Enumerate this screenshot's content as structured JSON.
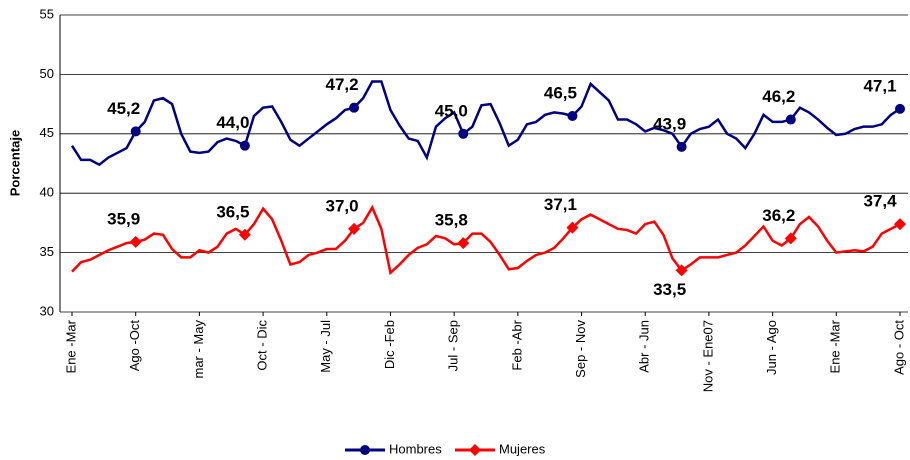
{
  "chart_data": {
    "type": "line",
    "ylabel": "Porcentaje",
    "categories": [
      "Ene -Mar",
      null,
      null,
      null,
      null,
      null,
      null,
      "Ago -Oct",
      null,
      null,
      null,
      null,
      null,
      null,
      "mar - May",
      null,
      null,
      null,
      null,
      null,
      null,
      "Oct - Dic",
      null,
      null,
      null,
      null,
      null,
      null,
      "May - Jul",
      null,
      null,
      null,
      null,
      null,
      null,
      "Dic -Feb",
      null,
      null,
      null,
      null,
      null,
      null,
      "Jul - Sep",
      null,
      null,
      null,
      null,
      null,
      null,
      "Feb -Abr",
      null,
      null,
      null,
      null,
      null,
      null,
      "Sep - Nov",
      null,
      null,
      null,
      null,
      null,
      null,
      "Abr - Jun",
      null,
      null,
      null,
      null,
      null,
      null,
      "Nov - Ene07",
      null,
      null,
      null,
      null,
      null,
      null,
      "Jun - Ago",
      null,
      null,
      null,
      null,
      null,
      null,
      "Ene -Mar",
      null,
      null,
      null,
      null,
      null,
      null,
      "Ago - Oct"
    ],
    "series": [
      {
        "name": "Hombres",
        "color": "#000080",
        "label_color": "#333399",
        "values": [
          44.0,
          42.8,
          42.8,
          42.4,
          43.0,
          43.4,
          43.8,
          45.2,
          46.0,
          47.8,
          48.0,
          47.5,
          45.0,
          43.5,
          43.4,
          43.5,
          44.3,
          44.6,
          44.4,
          44.0,
          46.5,
          47.2,
          47.3,
          46.0,
          44.5,
          44.0,
          44.6,
          45.2,
          45.8,
          46.3,
          47.0,
          47.2,
          48.0,
          49.4,
          49.4,
          47.0,
          45.7,
          44.6,
          44.4,
          43.0,
          45.6,
          46.3,
          46.8,
          45.0,
          45.6,
          47.4,
          47.5,
          45.9,
          44.0,
          44.5,
          45.8,
          46.0,
          46.6,
          46.8,
          46.7,
          46.5,
          47.3,
          49.2,
          48.5,
          47.8,
          46.2,
          46.2,
          45.8,
          45.2,
          45.5,
          45.3,
          45.0,
          43.9,
          45.0,
          45.4,
          45.6,
          46.2,
          45.0,
          44.6,
          43.8,
          45.0,
          46.6,
          46.0,
          46.0,
          46.2,
          47.2,
          46.8,
          46.2,
          45.5,
          44.9,
          45.0,
          45.4,
          45.6,
          45.6,
          45.8,
          46.6,
          47.1
        ],
        "value_labels": [
          null,
          null,
          null,
          null,
          null,
          null,
          null,
          "45,2",
          null,
          null,
          null,
          null,
          null,
          null,
          null,
          null,
          null,
          null,
          null,
          "44,0",
          null,
          null,
          null,
          null,
          null,
          null,
          null,
          null,
          null,
          null,
          null,
          "47,2",
          null,
          null,
          null,
          null,
          null,
          null,
          null,
          null,
          null,
          null,
          null,
          "45,0",
          null,
          null,
          null,
          null,
          null,
          null,
          null,
          null,
          null,
          null,
          null,
          "46,5",
          null,
          null,
          null,
          null,
          null,
          null,
          null,
          null,
          null,
          null,
          null,
          "43,9",
          null,
          null,
          null,
          null,
          null,
          null,
          null,
          null,
          null,
          null,
          null,
          "46,2",
          null,
          null,
          null,
          null,
          null,
          null,
          null,
          null,
          null,
          null,
          null,
          "47,1"
        ]
      },
      {
        "name": "Mujeres",
        "color": "#ff0000",
        "label_color": "#ff0000",
        "values": [
          33.4,
          34.2,
          34.4,
          34.8,
          35.2,
          35.5,
          35.8,
          35.9,
          36.1,
          36.6,
          36.5,
          35.3,
          34.6,
          34.6,
          35.2,
          35.0,
          35.5,
          36.6,
          37.0,
          36.5,
          37.4,
          38.7,
          37.8,
          36.0,
          34.0,
          34.2,
          34.8,
          35.0,
          35.3,
          35.3,
          36.0,
          37.0,
          37.5,
          38.8,
          37.0,
          33.3,
          34.0,
          34.8,
          35.4,
          35.7,
          36.4,
          36.2,
          35.7,
          35.8,
          36.6,
          36.6,
          35.9,
          34.8,
          33.6,
          33.7,
          34.3,
          34.8,
          35.0,
          35.4,
          36.2,
          37.1,
          37.8,
          38.2,
          37.8,
          37.4,
          37.0,
          36.9,
          36.6,
          37.4,
          37.6,
          36.5,
          34.5,
          33.5,
          34.0,
          34.6,
          34.6,
          34.6,
          34.8,
          35.0,
          35.6,
          36.4,
          37.2,
          36.0,
          35.6,
          36.2,
          37.4,
          38.0,
          37.2,
          36.0,
          35.0,
          35.1,
          35.2,
          35.1,
          35.5,
          36.6,
          37.0,
          37.4
        ],
        "value_labels": [
          null,
          null,
          null,
          null,
          null,
          null,
          null,
          "35,9",
          null,
          null,
          null,
          null,
          null,
          null,
          null,
          null,
          null,
          null,
          null,
          "36,5",
          null,
          null,
          null,
          null,
          null,
          null,
          null,
          null,
          null,
          null,
          null,
          "37,0",
          null,
          null,
          null,
          null,
          null,
          null,
          null,
          null,
          null,
          null,
          null,
          "35,8",
          null,
          null,
          null,
          null,
          null,
          null,
          null,
          null,
          null,
          null,
          null,
          "37,1",
          null,
          null,
          null,
          null,
          null,
          null,
          null,
          null,
          null,
          null,
          null,
          "33,5",
          null,
          null,
          null,
          null,
          null,
          null,
          null,
          null,
          null,
          null,
          null,
          "36,2",
          null,
          null,
          null,
          null,
          null,
          null,
          null,
          null,
          null,
          null,
          null,
          "37,4"
        ]
      }
    ],
    "ylim": [
      30,
      55
    ],
    "yticks": [
      30,
      35,
      40,
      45,
      50,
      55
    ],
    "grid": true
  }
}
